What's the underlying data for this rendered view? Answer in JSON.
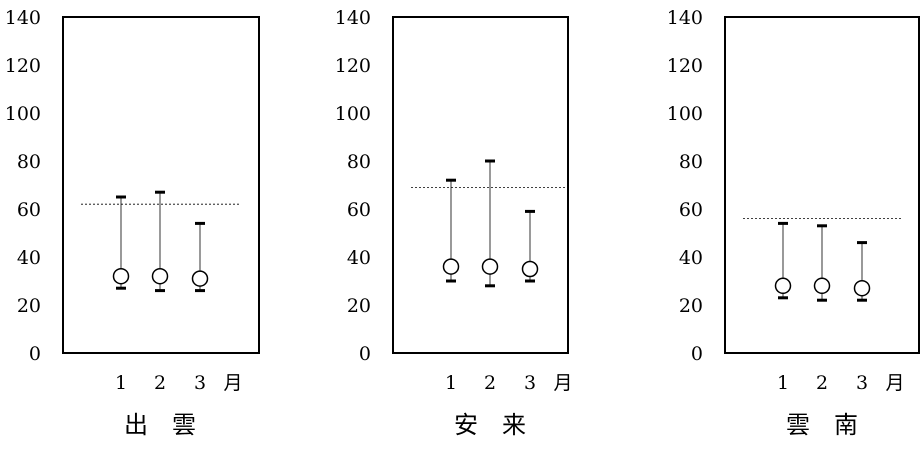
{
  "chart_data": [
    {
      "type": "range-dot",
      "title": "出　雲",
      "ylim": [
        0,
        140
      ],
      "yticks": [
        0,
        20,
        40,
        60,
        80,
        100,
        120,
        140
      ],
      "categories": [
        "1",
        "2",
        "3"
      ],
      "x_unit": "月",
      "mean": [
        32,
        32,
        31
      ],
      "max": [
        65,
        67,
        54
      ],
      "min": [
        27,
        26,
        26
      ],
      "reference_line": 62
    },
    {
      "type": "range-dot",
      "title": "安　来",
      "ylim": [
        0,
        140
      ],
      "yticks": [
        0,
        20,
        40,
        60,
        80,
        100,
        120,
        140
      ],
      "categories": [
        "1",
        "2",
        "3"
      ],
      "x_unit": "月",
      "mean": [
        36,
        36,
        35
      ],
      "max": [
        72,
        80,
        59
      ],
      "min": [
        30,
        28,
        30
      ],
      "reference_line": 69
    },
    {
      "type": "range-dot",
      "title": "雲　南",
      "ylim": [
        0,
        140
      ],
      "yticks": [
        0,
        20,
        40,
        60,
        80,
        100,
        120,
        140
      ],
      "categories": [
        "1",
        "2",
        "3"
      ],
      "x_unit": "月",
      "mean": [
        28,
        28,
        27
      ],
      "max": [
        54,
        53,
        46
      ],
      "min": [
        23,
        22,
        22
      ],
      "reference_line": 56
    }
  ]
}
